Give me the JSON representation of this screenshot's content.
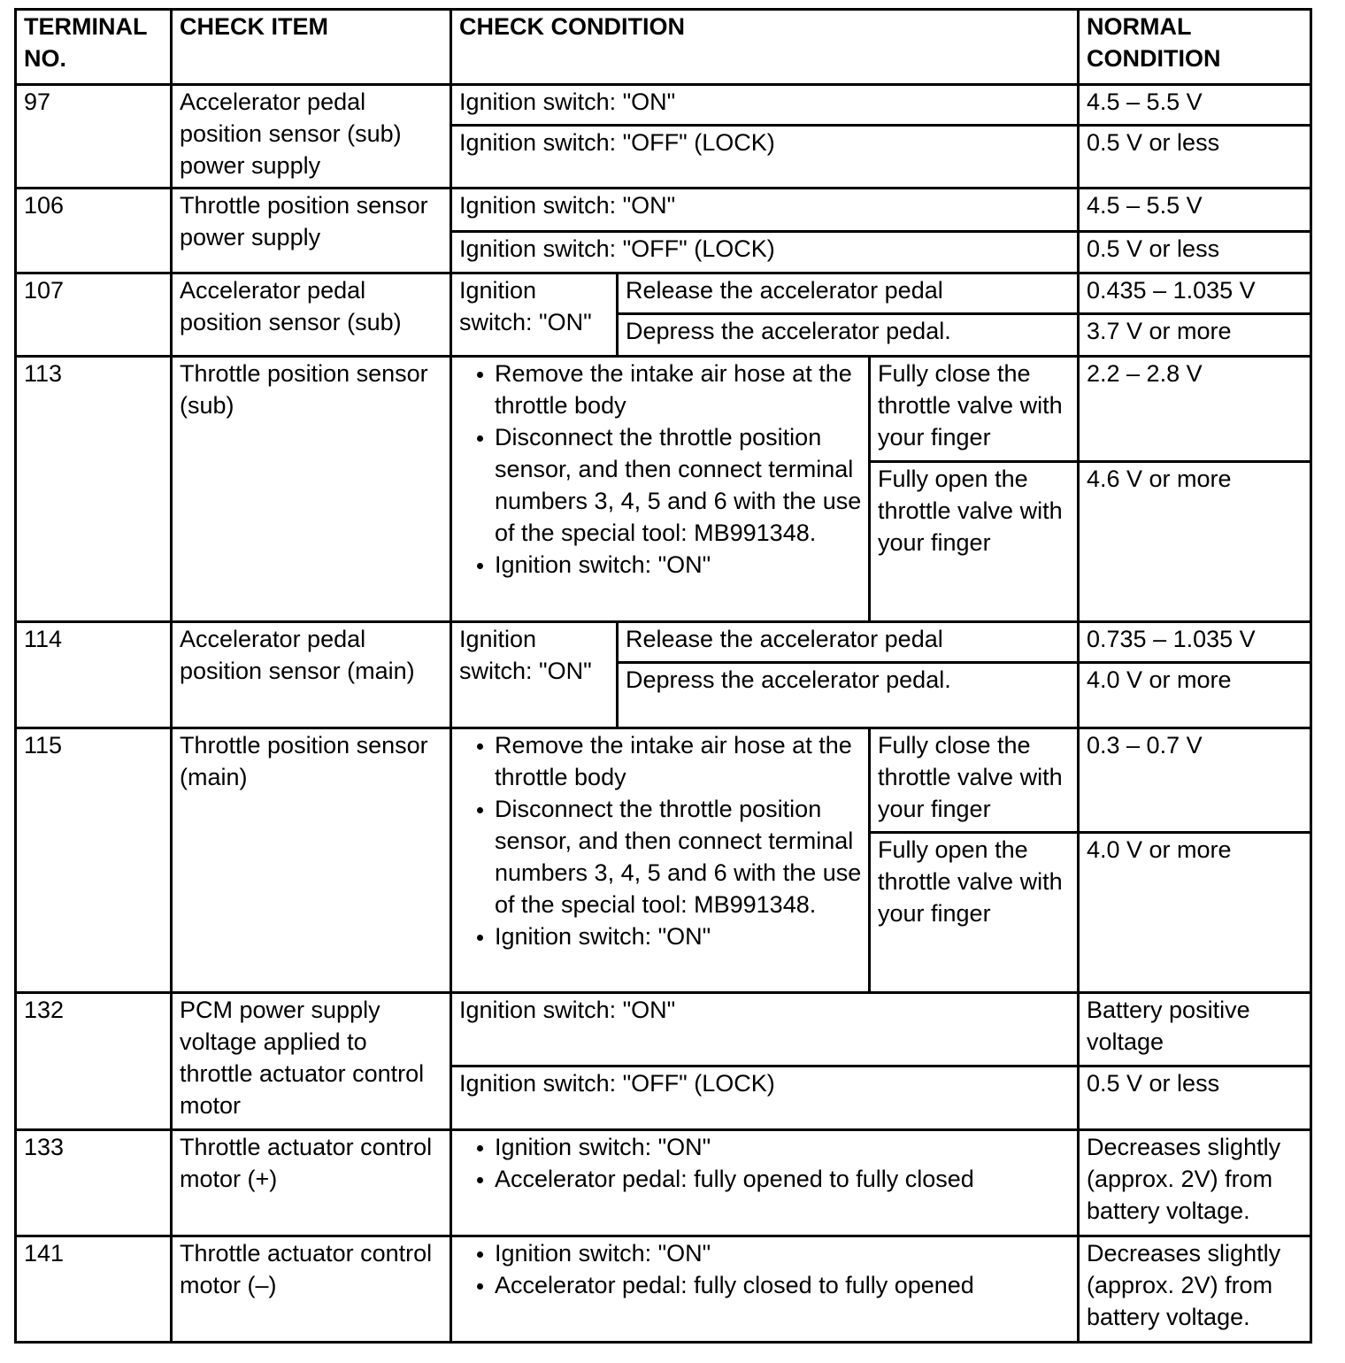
{
  "header": {
    "terminal_no": "TERMINAL NO.",
    "check_item": "CHECK ITEM",
    "check_condition": "CHECK CONDITION",
    "normal_condition": "NORMAL CONDITION"
  },
  "rows": [
    {
      "terminal": "97",
      "item": "Accelerator pedal position sensor (sub) power supply",
      "conditions": [
        {
          "condition": "Ignition switch: \"ON\"",
          "normal": "4.5 – 5.5 V"
        },
        {
          "condition": "Ignition switch: \"OFF\" (LOCK)",
          "normal": "0.5 V or less"
        }
      ]
    },
    {
      "terminal": "106",
      "item": "Throttle position sensor power supply",
      "conditions": [
        {
          "condition": "Ignition switch: \"ON\"",
          "normal": "4.5 – 5.5 V"
        },
        {
          "condition": "Ignition switch: \"OFF\" (LOCK)",
          "normal": "0.5 V or less"
        }
      ]
    },
    {
      "terminal": "107",
      "item": "Accelerator pedal position sensor (sub)",
      "condition_group": "Ignition switch: \"ON\"",
      "conditions": [
        {
          "condition": "Release the accelerator pedal",
          "normal": "0.435 – 1.035 V"
        },
        {
          "condition": "Depress the accelerator pedal.",
          "normal": "3.7 V or more"
        }
      ]
    },
    {
      "terminal": "113",
      "item": "Throttle position sensor (sub)",
      "bullets": [
        "Remove the intake air hose at the throttle body",
        "Disconnect the throttle position sensor, and then connect terminal numbers 3, 4, 5 and 6 with the use of the special tool: MB991348.",
        "Ignition switch: \"ON\""
      ],
      "conditions": [
        {
          "condition": "Fully close the throttle valve with your finger",
          "normal": "2.2 – 2.8 V"
        },
        {
          "condition": "Fully open the throttle valve with your finger",
          "normal": "4.6 V or more"
        }
      ]
    },
    {
      "terminal": "114",
      "item": "Accelerator pedal position sensor (main)",
      "condition_group": "Ignition switch: \"ON\"",
      "conditions": [
        {
          "condition": "Release the accelerator pedal",
          "normal": "0.735 – 1.035 V"
        },
        {
          "condition": "Depress the accelerator pedal.",
          "normal": "4.0 V or more"
        }
      ]
    },
    {
      "terminal": "115",
      "item": "Throttle position sensor (main)",
      "bullets": [
        "Remove the intake air hose at the throttle body",
        "Disconnect the throttle position sensor, and then connect terminal numbers 3, 4, 5 and 6 with the use of the special tool: MB991348.",
        "Ignition switch: \"ON\""
      ],
      "conditions": [
        {
          "condition": "Fully close the throttle valve with your finger",
          "normal": "0.3 – 0.7 V"
        },
        {
          "condition": "Fully open the throttle valve with your finger",
          "normal": "4.0 V or more"
        }
      ]
    },
    {
      "terminal": "132",
      "item": "PCM power supply voltage applied to throttle actuator control motor",
      "conditions": [
        {
          "condition": "Ignition switch: \"ON\"",
          "normal": "Battery positive voltage"
        },
        {
          "condition": "Ignition switch: \"OFF\" (LOCK)",
          "normal": "0.5 V or less"
        }
      ]
    },
    {
      "terminal": "133",
      "item": "Throttle actuator control motor (+)",
      "bullets": [
        "Ignition switch: \"ON\"",
        "Accelerator pedal: fully opened to fully closed"
      ],
      "normal": "Decreases slightly (approx. 2V) from battery voltage."
    },
    {
      "terminal": "141",
      "item": "Throttle actuator control motor (–)",
      "bullets": [
        "Ignition switch: \"ON\"",
        "Accelerator pedal: fully closed to fully opened"
      ],
      "normal": "Decreases slightly (approx. 2V) from battery voltage."
    }
  ]
}
